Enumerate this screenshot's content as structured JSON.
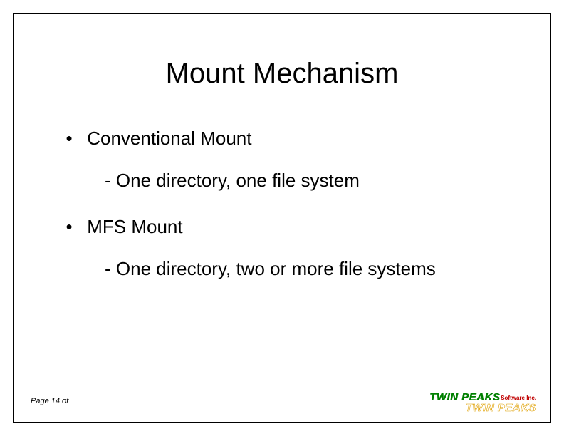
{
  "title": "Mount Mechanism",
  "items": {
    "b1": "Conventional Mount",
    "s1": "- One directory, one file system",
    "b2": "MFS Mount",
    "s2": "- One directory, two or more file systems"
  },
  "footer": {
    "page": "Page 14 of",
    "brand_main": "TWIN PEAKS",
    "brand_suffix": "Software Inc.",
    "brand_echo": "TWIN PEAKS"
  }
}
